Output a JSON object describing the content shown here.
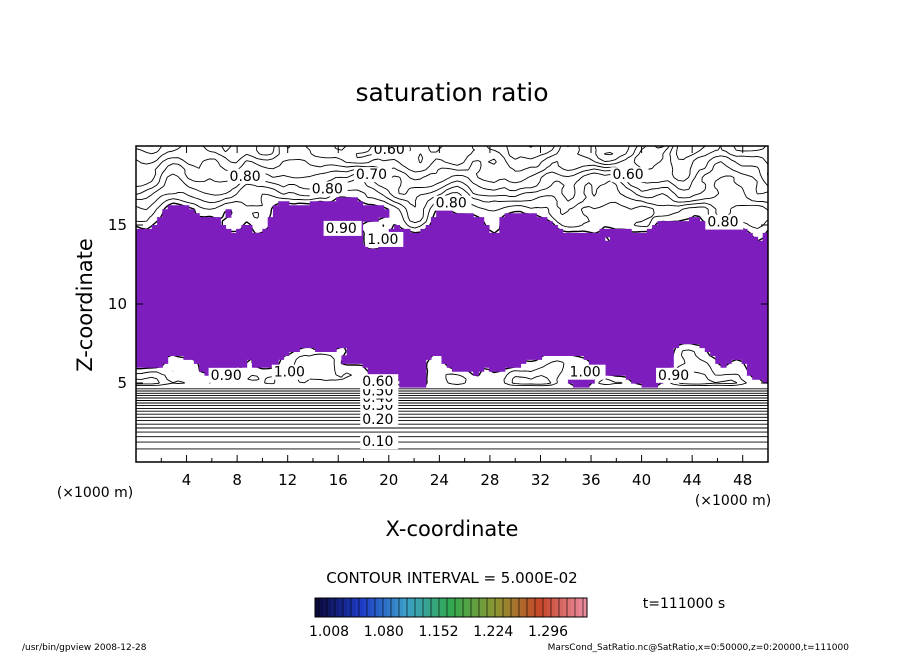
{
  "chart_data": {
    "type": "contour",
    "title": "saturation ratio",
    "xlabel": "X-coordinate",
    "ylabel": "Z-coordinate",
    "x_unit": "(×1000 m)",
    "y_unit": "(×1000 m)",
    "xlim": [
      0,
      50
    ],
    "ylim": [
      0,
      20
    ],
    "x_ticks": [
      4,
      8,
      12,
      16,
      20,
      24,
      28,
      32,
      36,
      40,
      44,
      48
    ],
    "y_ticks": [
      5,
      10,
      15
    ],
    "contour_interval_text": "CONTOUR INTERVAL = 5.000E-02",
    "time_text": "t=111000 s",
    "shade_threshold": 1.0,
    "shade_color": "#7d1dbd",
    "colorbar_ticks": [
      "1.008",
      "1.080",
      "1.152",
      "1.224",
      "1.296"
    ],
    "colorbar_range": [
      1.008,
      1.296
    ],
    "contour_labels": [
      {
        "text": "0.10",
        "x": 17.9,
        "z": 1.0
      },
      {
        "text": "0.20",
        "x": 17.9,
        "z": 2.4
      },
      {
        "text": "0.30",
        "x": 17.9,
        "z": 3.3
      },
      {
        "text": "0.40",
        "x": 17.9,
        "z": 3.8
      },
      {
        "text": "0.50",
        "x": 17.9,
        "z": 4.2
      },
      {
        "text": "0.60",
        "x": 17.9,
        "z": 4.8
      },
      {
        "text": "1.00",
        "x": 10.9,
        "z": 5.4
      },
      {
        "text": "0.90",
        "x": 5.9,
        "z": 5.2
      },
      {
        "text": "1.00",
        "x": 34.3,
        "z": 5.4
      },
      {
        "text": "0.90",
        "x": 41.3,
        "z": 5.2
      },
      {
        "text": "0.60",
        "x": 18.8,
        "z": 19.5
      },
      {
        "text": "0.70",
        "x": 17.4,
        "z": 17.9
      },
      {
        "text": "0.80",
        "x": 13.9,
        "z": 17.0
      },
      {
        "text": "0.90",
        "x": 15.0,
        "z": 14.5
      },
      {
        "text": "1.00",
        "x": 18.3,
        "z": 13.8
      },
      {
        "text": "0.60",
        "x": 37.7,
        "z": 17.9
      },
      {
        "text": "0.80",
        "x": 23.7,
        "z": 16.1
      },
      {
        "text": "0.80",
        "x": 45.2,
        "z": 14.9
      },
      {
        "text": "0.80",
        "x": 7.4,
        "z": 17.8
      }
    ]
  },
  "footer": {
    "left": "/usr/bin/gpview   2008-12-28",
    "right": "MarsCond_SatRatio.nc@SatRatio,x=0:50000,z=0:20000,t=111000"
  }
}
